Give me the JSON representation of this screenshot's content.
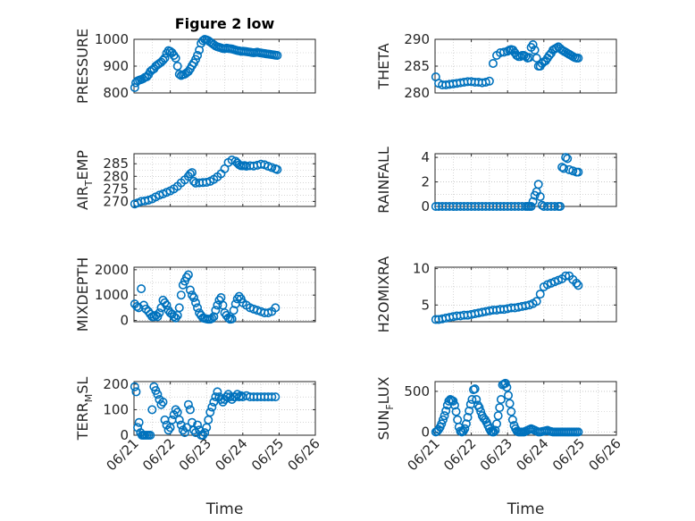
{
  "chart_data": [
    {
      "type": "scatter",
      "title": "Figure 2 low",
      "xlabel": "",
      "ylabel": "PRESSURE",
      "x_ticks": [],
      "ylim": [
        800,
        1000
      ],
      "yticks": [
        800,
        900,
        1000
      ],
      "x": [
        0.02,
        0.05,
        0.1,
        0.15,
        0.2,
        0.25,
        0.3,
        0.35,
        0.4,
        0.45,
        0.5,
        0.55,
        0.6,
        0.65,
        0.7,
        0.75,
        0.8,
        0.85,
        0.9,
        0.95,
        1.0,
        1.05,
        1.1,
        1.15,
        1.2,
        1.25,
        1.3,
        1.35,
        1.4,
        1.45,
        1.5,
        1.55,
        1.6,
        1.65,
        1.7,
        1.75,
        1.8,
        1.85,
        1.9,
        1.95,
        2.0,
        2.05,
        2.1,
        2.15,
        2.2,
        2.25,
        2.3,
        2.35,
        2.4,
        2.45,
        2.5,
        2.55,
        2.6,
        2.65,
        2.7,
        2.75,
        2.8,
        2.85,
        2.9,
        2.95,
        3.0,
        3.05,
        3.1,
        3.15,
        3.2,
        3.25,
        3.3,
        3.35,
        3.4,
        3.45,
        3.5,
        3.55,
        3.6,
        3.65,
        3.7,
        3.75,
        3.8,
        3.85,
        3.9,
        3.95
      ],
      "y": [
        820,
        838,
        845,
        848,
        850,
        853,
        858,
        860,
        868,
        880,
        886,
        890,
        900,
        905,
        910,
        915,
        922,
        930,
        948,
        958,
        955,
        950,
        940,
        930,
        900,
        870,
        865,
        868,
        870,
        875,
        880,
        890,
        902,
        912,
        925,
        940,
        960,
        985,
        995,
        1000,
        998,
        995,
        990,
        985,
        980,
        975,
        972,
        970,
        968,
        966,
        965,
        967,
        966,
        965,
        964,
        962,
        960,
        958,
        957,
        955,
        956,
        955,
        954,
        953,
        952,
        951,
        950,
        951,
        952,
        950,
        949,
        948,
        947,
        946,
        945,
        944,
        943,
        942,
        941,
        940
      ]
    },
    {
      "type": "scatter",
      "title": "",
      "xlabel": "",
      "ylabel": "THETA",
      "x_ticks": [],
      "ylim": [
        280,
        290
      ],
      "yticks": [
        280,
        285,
        290
      ],
      "x": [
        0.02,
        0.1,
        0.2,
        0.3,
        0.4,
        0.5,
        0.6,
        0.7,
        0.8,
        0.9,
        1.0,
        1.1,
        1.2,
        1.3,
        1.4,
        1.5,
        1.6,
        1.7,
        1.8,
        1.9,
        2.0,
        2.05,
        2.1,
        2.15,
        2.2,
        2.25,
        2.3,
        2.35,
        2.4,
        2.45,
        2.5,
        2.55,
        2.6,
        2.65,
        2.7,
        2.75,
        2.8,
        2.85,
        2.9,
        2.95,
        3.0,
        3.05,
        3.1,
        3.15,
        3.2,
        3.25,
        3.3,
        3.35,
        3.4,
        3.45,
        3.5,
        3.55,
        3.6,
        3.65,
        3.7,
        3.75,
        3.8,
        3.85,
        3.9,
        3.95
      ],
      "y": [
        283.0,
        281.8,
        281.5,
        281.5,
        281.6,
        281.7,
        281.8,
        281.9,
        282.0,
        282.1,
        282.1,
        282.0,
        282.0,
        281.9,
        282.0,
        282.2,
        285.5,
        287.0,
        287.5,
        287.6,
        287.8,
        288.0,
        288.1,
        288.0,
        287.5,
        287.0,
        286.8,
        286.8,
        287.0,
        287.0,
        286.8,
        286.5,
        286.6,
        288.5,
        289.0,
        288.0,
        286.5,
        285.0,
        285.0,
        285.5,
        285.8,
        286.0,
        286.5,
        287.0,
        287.4,
        288.0,
        288.2,
        288.4,
        288.6,
        288.3,
        288.0,
        287.8,
        287.6,
        287.4,
        287.2,
        287.0,
        286.8,
        286.6,
        286.5,
        286.5
      ]
    },
    {
      "type": "scatter",
      "title": "",
      "xlabel": "",
      "ylabel": "AIR_TEMP",
      "ylabel_sub": "T",
      "x_ticks": [],
      "ylim": [
        268,
        289
      ],
      "yticks": [
        270,
        275,
        280,
        285
      ],
      "x": [
        0.02,
        0.1,
        0.2,
        0.3,
        0.4,
        0.5,
        0.6,
        0.7,
        0.8,
        0.9,
        1.0,
        1.1,
        1.2,
        1.3,
        1.4,
        1.5,
        1.55,
        1.6,
        1.65,
        1.7,
        1.8,
        1.9,
        2.0,
        2.1,
        2.2,
        2.3,
        2.4,
        2.5,
        2.6,
        2.7,
        2.8,
        2.85,
        2.9,
        2.95,
        3.0,
        3.05,
        3.1,
        3.2,
        3.3,
        3.4,
        3.5,
        3.6,
        3.7,
        3.8,
        3.9,
        3.95
      ],
      "y": [
        269.0,
        269.4,
        270.0,
        270.2,
        270.5,
        271.0,
        271.8,
        272.5,
        273.0,
        273.6,
        274.2,
        275.0,
        276.0,
        277.4,
        278.6,
        280.0,
        281.0,
        281.5,
        278.0,
        277.3,
        277.4,
        277.5,
        277.6,
        278.0,
        278.8,
        279.8,
        281.0,
        283.0,
        285.5,
        286.5,
        286.0,
        285.3,
        284.6,
        284.2,
        284.2,
        284.3,
        284.0,
        284.2,
        284.1,
        284.4,
        284.8,
        284.6,
        284.0,
        283.5,
        283.0,
        282.7
      ]
    },
    {
      "type": "scatter",
      "title": "",
      "xlabel": "",
      "ylabel": "RAINFALL",
      "x_ticks": [],
      "ylim": [
        0,
        4.3
      ],
      "yticks": [
        0,
        2,
        4
      ],
      "x": [
        0.02,
        0.1,
        0.2,
        0.3,
        0.4,
        0.5,
        0.6,
        0.7,
        0.8,
        0.9,
        1.0,
        1.1,
        1.2,
        1.3,
        1.4,
        1.5,
        1.6,
        1.7,
        1.8,
        1.9,
        2.0,
        2.1,
        2.2,
        2.3,
        2.4,
        2.5,
        2.55,
        2.6,
        2.65,
        2.7,
        2.75,
        2.8,
        2.85,
        2.9,
        2.95,
        3.0,
        3.1,
        3.2,
        3.3,
        3.4,
        3.45,
        3.5,
        3.55,
        3.6,
        3.65,
        3.7,
        3.8,
        3.9,
        3.95
      ],
      "y": [
        0,
        0,
        0,
        0,
        0,
        0,
        0,
        0,
        0,
        0,
        0,
        0,
        0,
        0,
        0,
        0,
        0,
        0,
        0,
        0,
        0,
        0,
        0,
        0,
        0,
        0,
        0,
        0,
        0,
        0.4,
        0.9,
        1.2,
        1.8,
        0.8,
        0.1,
        0,
        0,
        0,
        0,
        0,
        0,
        3.2,
        3.1,
        4.0,
        3.9,
        3.0,
        2.9,
        2.8,
        2.8
      ]
    },
    {
      "type": "scatter",
      "title": "",
      "xlabel": "",
      "ylabel": "MIXDEPTH",
      "x_ticks": [],
      "ylim": [
        -50,
        2100
      ],
      "yticks": [
        0,
        1000,
        2000
      ],
      "x": [
        0.02,
        0.08,
        0.13,
        0.2,
        0.27,
        0.33,
        0.4,
        0.45,
        0.5,
        0.55,
        0.6,
        0.65,
        0.7,
        0.75,
        0.8,
        0.85,
        0.9,
        0.95,
        1.0,
        1.05,
        1.1,
        1.15,
        1.2,
        1.25,
        1.3,
        1.35,
        1.4,
        1.45,
        1.5,
        1.55,
        1.6,
        1.65,
        1.7,
        1.75,
        1.8,
        1.85,
        1.9,
        1.95,
        2.0,
        2.05,
        2.1,
        2.15,
        2.2,
        2.25,
        2.3,
        2.35,
        2.4,
        2.45,
        2.5,
        2.55,
        2.6,
        2.65,
        2.7,
        2.75,
        2.8,
        2.85,
        2.9,
        2.95,
        3.0,
        3.1,
        3.2,
        3.3,
        3.4,
        3.5,
        3.6,
        3.7,
        3.8,
        3.9
      ],
      "y": [
        650,
        550,
        500,
        1250,
        600,
        450,
        350,
        250,
        150,
        150,
        200,
        150,
        300,
        500,
        800,
        700,
        600,
        400,
        300,
        250,
        150,
        100,
        200,
        500,
        1000,
        1400,
        1550,
        1700,
        1800,
        1200,
        1000,
        900,
        700,
        500,
        300,
        200,
        100,
        80,
        60,
        50,
        50,
        80,
        150,
        400,
        600,
        800,
        900,
        600,
        300,
        200,
        100,
        50,
        60,
        400,
        650,
        850,
        950,
        850,
        700,
        600,
        500,
        450,
        400,
        350,
        300,
        300,
        350,
        500
      ]
    },
    {
      "type": "scatter",
      "title": "",
      "xlabel": "",
      "ylabel": "H2OMIXRA",
      "x_ticks": [],
      "ylim": [
        2.7,
        10.2
      ],
      "yticks": [
        5,
        10
      ],
      "x": [
        0.02,
        0.1,
        0.2,
        0.3,
        0.4,
        0.5,
        0.6,
        0.7,
        0.8,
        0.9,
        1.0,
        1.1,
        1.2,
        1.3,
        1.4,
        1.5,
        1.6,
        1.7,
        1.8,
        1.9,
        2.0,
        2.1,
        2.2,
        2.3,
        2.4,
        2.5,
        2.6,
        2.7,
        2.8,
        2.9,
        3.0,
        3.1,
        3.2,
        3.3,
        3.4,
        3.5,
        3.6,
        3.7,
        3.8,
        3.9,
        3.95
      ],
      "y": [
        3.0,
        3.0,
        3.1,
        3.2,
        3.3,
        3.4,
        3.5,
        3.5,
        3.6,
        3.6,
        3.7,
        3.8,
        3.9,
        4.0,
        4.1,
        4.2,
        4.3,
        4.3,
        4.4,
        4.4,
        4.5,
        4.6,
        4.6,
        4.7,
        4.8,
        4.9,
        5.0,
        5.2,
        5.5,
        6.5,
        7.5,
        7.8,
        8.0,
        8.2,
        8.4,
        8.6,
        9.0,
        9.0,
        8.5,
        8.0,
        7.7
      ]
    },
    {
      "type": "scatter",
      "title": "",
      "xlabel": "Time",
      "ylabel": "TERR_MSL",
      "ylabel_sub": "M",
      "x_ticks": [
        "06/21",
        "06/22",
        "06/23",
        "06/24",
        "06/25",
        "06/26"
      ],
      "ylim": [
        0,
        210
      ],
      "yticks": [
        0,
        100,
        200
      ],
      "x": [
        0.02,
        0.06,
        0.1,
        0.14,
        0.18,
        0.22,
        0.26,
        0.3,
        0.35,
        0.4,
        0.45,
        0.5,
        0.55,
        0.6,
        0.65,
        0.7,
        0.75,
        0.8,
        0.85,
        0.9,
        0.95,
        1.0,
        1.05,
        1.1,
        1.15,
        1.2,
        1.25,
        1.3,
        1.35,
        1.4,
        1.45,
        1.5,
        1.55,
        1.6,
        1.65,
        1.7,
        1.75,
        1.8,
        1.85,
        1.9,
        1.95,
        2.0,
        2.05,
        2.1,
        2.15,
        2.2,
        2.25,
        2.3,
        2.35,
        2.4,
        2.45,
        2.5,
        2.55,
        2.6,
        2.65,
        2.7,
        2.75,
        2.8,
        2.85,
        2.9,
        2.95,
        3.0,
        3.1,
        3.2,
        3.3,
        3.4,
        3.5,
        3.6,
        3.7,
        3.8,
        3.9
      ],
      "y": [
        190,
        170,
        30,
        50,
        10,
        0,
        0,
        0,
        0,
        0,
        0,
        100,
        190,
        175,
        160,
        140,
        120,
        130,
        60,
        40,
        20,
        30,
        60,
        80,
        100,
        90,
        60,
        40,
        20,
        10,
        30,
        120,
        100,
        50,
        20,
        10,
        40,
        20,
        0,
        0,
        10,
        30,
        60,
        90,
        110,
        130,
        150,
        170,
        150,
        140,
        130,
        140,
        150,
        160,
        150,
        140,
        150,
        150,
        160,
        150,
        155,
        150,
        155,
        150,
        150,
        150,
        150,
        150,
        150,
        150,
        150
      ]
    },
    {
      "type": "scatter",
      "title": "",
      "xlabel": "Time",
      "ylabel": "SUN_FLUX",
      "ylabel_sub": "F",
      "x_ticks": [
        "06/21",
        "06/22",
        "06/23",
        "06/24",
        "06/25",
        "06/26"
      ],
      "ylim": [
        -40,
        620
      ],
      "yticks": [
        0,
        500
      ],
      "x": [
        0.02,
        0.06,
        0.1,
        0.14,
        0.18,
        0.22,
        0.26,
        0.3,
        0.34,
        0.38,
        0.42,
        0.46,
        0.5,
        0.54,
        0.58,
        0.62,
        0.66,
        0.7,
        0.74,
        0.78,
        0.82,
        0.86,
        0.9,
        0.94,
        0.98,
        1.02,
        1.06,
        1.1,
        1.14,
        1.18,
        1.22,
        1.26,
        1.3,
        1.34,
        1.38,
        1.42,
        1.46,
        1.5,
        1.54,
        1.58,
        1.62,
        1.66,
        1.7,
        1.74,
        1.78,
        1.82,
        1.86,
        1.9,
        1.94,
        1.98,
        2.02,
        2.06,
        2.1,
        2.14,
        2.18,
        2.22,
        2.26,
        2.3,
        2.34,
        2.38,
        2.42,
        2.46,
        2.5,
        2.55,
        2.6,
        2.65,
        2.7,
        2.75,
        2.8,
        2.85,
        2.9,
        2.95,
        3.0,
        3.05,
        3.1,
        3.15,
        3.2,
        3.25,
        3.3,
        3.35,
        3.4,
        3.45,
        3.5,
        3.55,
        3.6,
        3.65,
        3.7,
        3.75,
        3.8,
        3.85,
        3.9,
        3.95
      ],
      "y": [
        0,
        10,
        30,
        60,
        100,
        150,
        200,
        260,
        330,
        380,
        400,
        390,
        380,
        330,
        250,
        150,
        60,
        10,
        0,
        10,
        40,
        100,
        180,
        260,
        340,
        400,
        520,
        530,
        400,
        330,
        300,
        250,
        200,
        170,
        150,
        120,
        80,
        40,
        10,
        0,
        0,
        20,
        100,
        200,
        300,
        400,
        580,
        590,
        600,
        550,
        450,
        350,
        250,
        150,
        80,
        40,
        10,
        0,
        0,
        0,
        0,
        0,
        10,
        20,
        30,
        40,
        30,
        20,
        10,
        0,
        0,
        5,
        10,
        15,
        20,
        10,
        5,
        0,
        0,
        0,
        0,
        0,
        0,
        0,
        0,
        0,
        0,
        0,
        0,
        0,
        0,
        0
      ]
    }
  ],
  "colors": {
    "marker": "#0072BD",
    "axis": "#262626"
  }
}
